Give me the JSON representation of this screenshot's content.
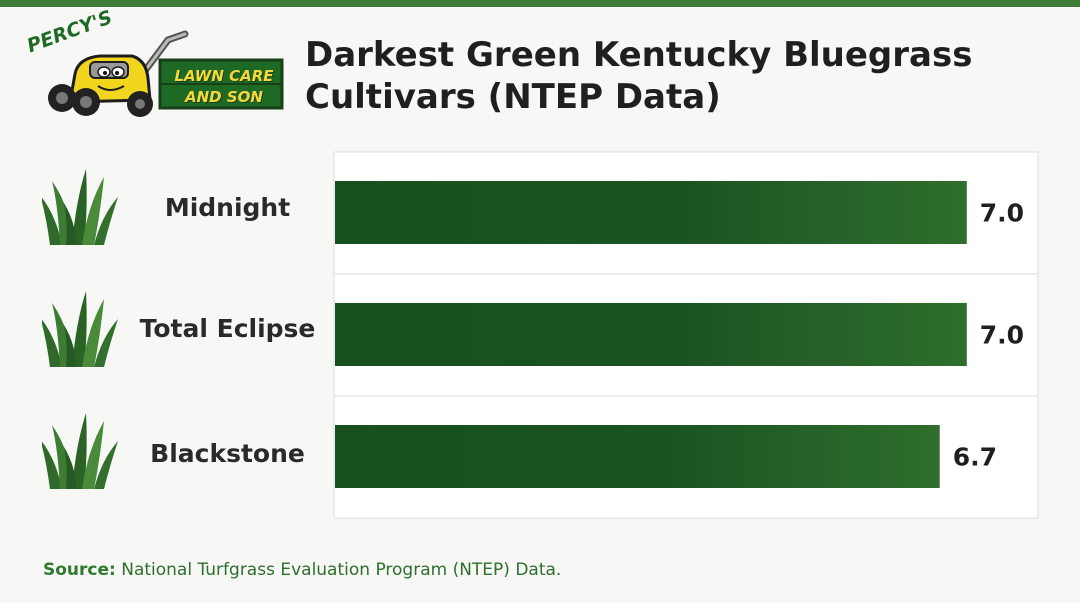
{
  "brand": {
    "logo_top": "PERCY'S",
    "logo_line1": "LAWN CARE",
    "logo_line2": "AND SON"
  },
  "title": "Darkest Green Kentucky Bluegrass Cultivars (NTEP Data)",
  "chart_data": {
    "type": "bar",
    "orientation": "horizontal",
    "categories": [
      "Midnight",
      "Total Eclipse",
      "Blackstone"
    ],
    "values": [
      7.0,
      7.0,
      6.7
    ],
    "value_labels": [
      "7.0",
      "7.0",
      "6.7"
    ],
    "title": "Darkest Green Kentucky Bluegrass Cultivars (NTEP Data)",
    "xlabel": "",
    "ylabel": "",
    "xlim": [
      0,
      7.8
    ],
    "grid": true,
    "legend": "none",
    "colors": {
      "bar": "#174f1f",
      "bar_light": "#3a7a32"
    }
  },
  "source": {
    "label": "Source:",
    "text": "National Turfgrass Evaluation Program (NTEP) Data."
  }
}
